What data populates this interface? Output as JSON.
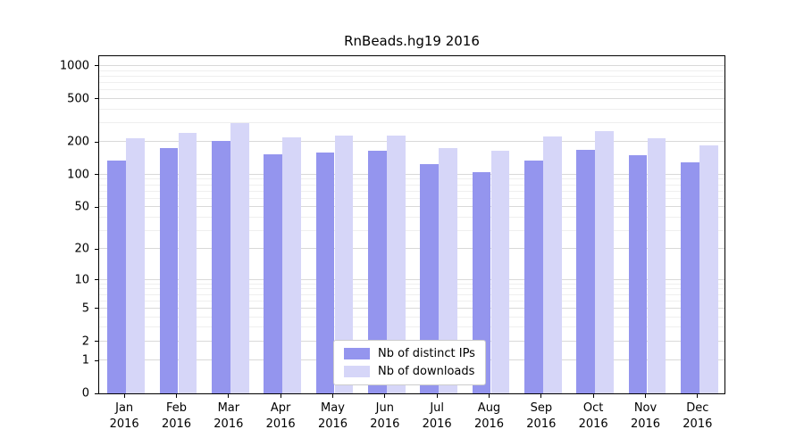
{
  "chart_data": {
    "type": "bar",
    "title": "RnBeads.hg19 2016",
    "categories": [
      "Jan",
      "Feb",
      "Mar",
      "Apr",
      "May",
      "Jun",
      "Jul",
      "Aug",
      "Sep",
      "Oct",
      "Nov",
      "Dec"
    ],
    "category_year": "2016",
    "series": [
      {
        "name": "Nb of distinct IPs",
        "color": "#9495ee",
        "values": [
          135,
          175,
          205,
          155,
          160,
          165,
          125,
          105,
          135,
          170,
          150,
          130
        ]
      },
      {
        "name": "Nb of downloads",
        "color": "#d6d6f8",
        "values": [
          215,
          245,
          300,
          220,
          230,
          230,
          175,
          165,
          225,
          250,
          215,
          185
        ]
      }
    ],
    "xlabel": "",
    "ylabel": "",
    "yscale": "log10(1+y)",
    "yticks": [
      0,
      1,
      2,
      5,
      10,
      20,
      50,
      100,
      200,
      500,
      1000
    ],
    "yticks_minor": [
      3,
      4,
      6,
      7,
      8,
      9,
      30,
      40,
      60,
      70,
      80,
      90,
      300,
      400,
      600,
      700,
      800,
      900
    ],
    "ylim": [
      0,
      1230
    ],
    "grid": true,
    "legend_position": "inside-bottom-center"
  },
  "colors": {
    "axis": "#000000",
    "grid_major": "#d9d9d9",
    "grid_minor": "#efefef",
    "background": "#ffffff"
  }
}
